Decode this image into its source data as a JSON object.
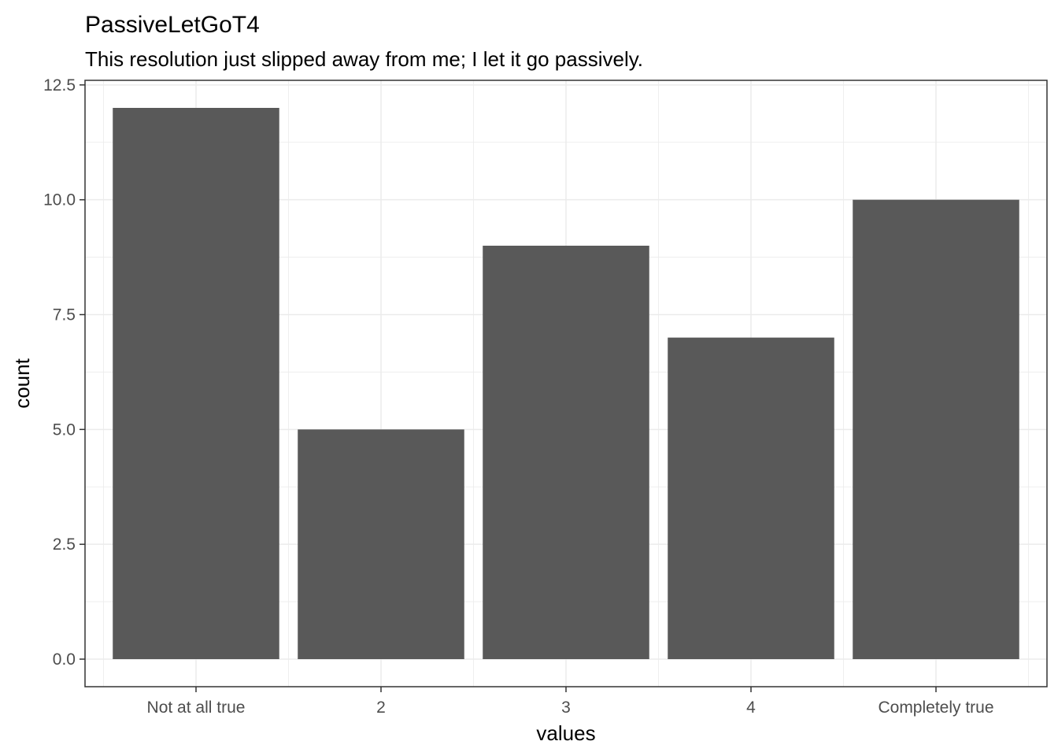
{
  "chart_data": {
    "type": "bar",
    "title": "PassiveLetGoT4",
    "subtitle": "This resolution just slipped away from me; I let it go passively.",
    "xlabel": "values",
    "ylabel": "count",
    "categories": [
      "Not at all true",
      "2",
      "3",
      "4",
      "Completely true"
    ],
    "values": [
      12,
      5,
      9,
      7,
      10
    ],
    "ylim": [
      -0.6,
      12.6
    ],
    "yticks": [
      0,
      2.5,
      5,
      7.5,
      10,
      12.5
    ],
    "ytick_labels": [
      "0.0",
      "2.5",
      "5.0",
      "7.5",
      "10.0",
      "12.5"
    ],
    "grid": true,
    "bar_color": "#595959",
    "grid_color": "#ebebeb",
    "panel_border_color": "#333333",
    "tick_label_color": "#4d4d4d"
  }
}
